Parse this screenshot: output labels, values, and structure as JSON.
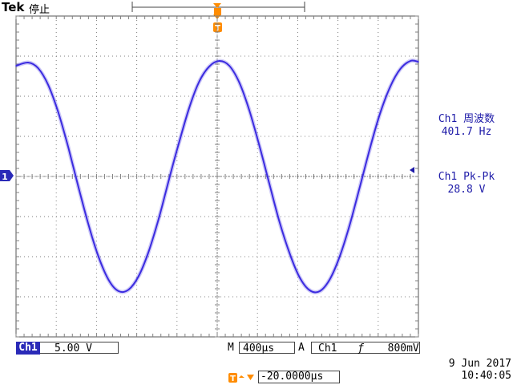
{
  "header": {
    "brand": "Tek",
    "status": "停止"
  },
  "measurements": [
    {
      "label": "Ch1 周波数",
      "value": "401.7 Hz"
    },
    {
      "label": "Ch1 Pk-Pk",
      "value": "28.8 V"
    }
  ],
  "channel": {
    "name": "Ch1",
    "scale": "5.00 V",
    "marker": "1"
  },
  "timebase": {
    "mode": "M",
    "scale": "400μs"
  },
  "trigger": {
    "mode": "A",
    "source": "Ch1",
    "slope": "ƒ",
    "level": "800mV",
    "delay": "-20.0000μs",
    "marker": "T"
  },
  "datetime": {
    "date": "9 Jun  2017",
    "time": "10:40:05"
  },
  "colors": {
    "trace": "#3b2be0",
    "accent": "#ff8c00",
    "grid": "#808080",
    "channel": "#2a2ab8"
  },
  "chart_data": {
    "type": "line",
    "title": "",
    "xlabel": "",
    "ylabel": "",
    "x_unit": "μs",
    "y_unit": "V",
    "xlim": [
      -2020,
      1980
    ],
    "ylim": [
      -20,
      20
    ],
    "grid": true,
    "series": [
      {
        "x": [
          -2020,
          -1900,
          -1800,
          -1700,
          -1600,
          -1500,
          -1400,
          -1300,
          -1200,
          -1100,
          -1000,
          -900,
          -800,
          -700,
          -600,
          -500,
          -400,
          -300,
          -200,
          -100,
          0,
          100,
          200,
          300,
          400,
          500,
          600,
          700,
          800,
          900,
          1000,
          1100,
          1200,
          1300,
          1400,
          1500,
          1600,
          1700,
          1800,
          1900,
          1980
        ],
        "y": [
          13.8,
          14.2,
          13.5,
          11.4,
          8.0,
          3.6,
          -1.3,
          -6.0,
          -10.0,
          -12.9,
          -14.3,
          -14.1,
          -12.4,
          -9.3,
          -5.2,
          -0.4,
          4.2,
          8.5,
          11.8,
          13.7,
          14.4,
          13.8,
          11.7,
          8.2,
          3.8,
          -1.0,
          -5.7,
          -9.6,
          -12.6,
          -14.2,
          -14.3,
          -12.8,
          -9.9,
          -5.9,
          -1.2,
          3.6,
          7.9,
          11.2,
          13.4,
          14.4,
          14.3
        ]
      }
    ]
  }
}
